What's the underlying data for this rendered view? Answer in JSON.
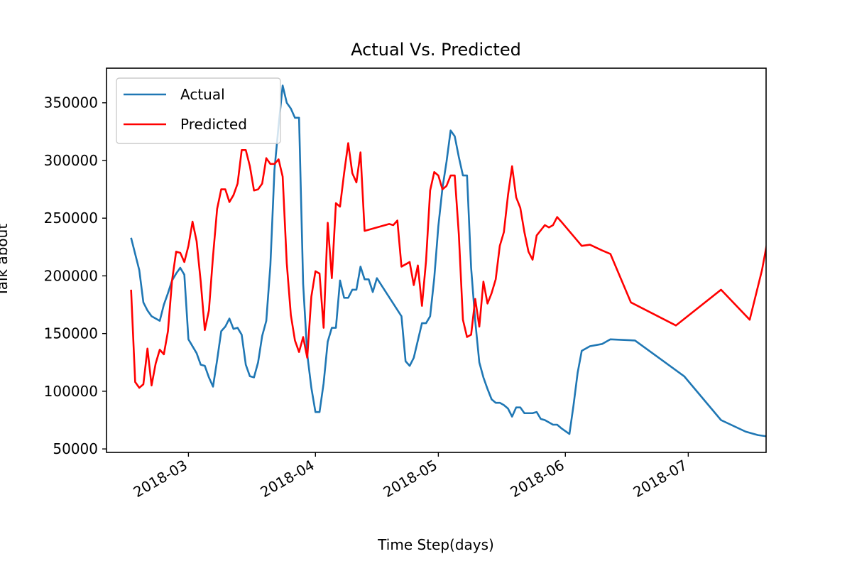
{
  "chart_data": {
    "type": "line",
    "title": "Actual Vs. Predicted",
    "xlabel": "Time Step(days)",
    "ylabel": "Talk about",
    "xlim": [
      "2018-02-09",
      "2018-07-20"
    ],
    "ylim": [
      47000,
      380000
    ],
    "x_ticks": [
      "2018-03-01",
      "2018-04-01",
      "2018-05-01",
      "2018-06-01",
      "2018-07-01"
    ],
    "x_tick_labels": [
      "2018-03",
      "2018-04",
      "2018-05",
      "2018-06",
      "2018-07"
    ],
    "y_ticks": [
      50000,
      100000,
      150000,
      200000,
      250000,
      300000,
      350000
    ],
    "y_tick_labels": [
      "50000",
      "100000",
      "150000",
      "200000",
      "250000",
      "300000",
      "350000"
    ],
    "grid": false,
    "legend": "upper-left",
    "series": [
      {
        "name": "Actual",
        "color": "#1f77b4",
        "points": [
          [
            "2018-02-15",
            233000
          ],
          [
            "2018-02-17",
            205000
          ],
          [
            "2018-02-18",
            177000
          ],
          [
            "2018-02-19",
            170000
          ],
          [
            "2018-02-20",
            165000
          ],
          [
            "2018-02-22",
            161000
          ],
          [
            "2018-02-23",
            175000
          ],
          [
            "2018-02-24",
            185000
          ],
          [
            "2018-02-25",
            196000
          ],
          [
            "2018-02-26",
            202000
          ],
          [
            "2018-02-27",
            207000
          ],
          [
            "2018-02-28",
            201000
          ],
          [
            "2018-03-01",
            145000
          ],
          [
            "2018-03-03",
            133000
          ],
          [
            "2018-03-04",
            123000
          ],
          [
            "2018-03-05",
            122000
          ],
          [
            "2018-03-06",
            112000
          ],
          [
            "2018-03-07",
            104000
          ],
          [
            "2018-03-08",
            127000
          ],
          [
            "2018-03-09",
            152000
          ],
          [
            "2018-03-10",
            156000
          ],
          [
            "2018-03-11",
            163000
          ],
          [
            "2018-03-12",
            154000
          ],
          [
            "2018-03-13",
            155000
          ],
          [
            "2018-03-14",
            149000
          ],
          [
            "2018-03-15",
            123000
          ],
          [
            "2018-03-16",
            113000
          ],
          [
            "2018-03-17",
            112000
          ],
          [
            "2018-03-18",
            125000
          ],
          [
            "2018-03-19",
            148000
          ],
          [
            "2018-03-20",
            161000
          ],
          [
            "2018-03-21",
            209000
          ],
          [
            "2018-03-22",
            292000
          ],
          [
            "2018-03-23",
            330000
          ],
          [
            "2018-03-24",
            365000
          ],
          [
            "2018-03-25",
            350000
          ],
          [
            "2018-03-26",
            345000
          ],
          [
            "2018-03-27",
            337000
          ],
          [
            "2018-03-28",
            337000
          ],
          [
            "2018-03-29",
            193000
          ],
          [
            "2018-03-30",
            132000
          ],
          [
            "2018-03-31",
            103000
          ],
          [
            "2018-04-01",
            82000
          ],
          [
            "2018-04-02",
            82000
          ],
          [
            "2018-04-03",
            107000
          ],
          [
            "2018-04-04",
            143000
          ],
          [
            "2018-04-05",
            155000
          ],
          [
            "2018-04-06",
            155000
          ],
          [
            "2018-04-07",
            196000
          ],
          [
            "2018-04-08",
            181000
          ],
          [
            "2018-04-09",
            181000
          ],
          [
            "2018-04-10",
            188000
          ],
          [
            "2018-04-11",
            188000
          ],
          [
            "2018-04-12",
            208000
          ],
          [
            "2018-04-13",
            197000
          ],
          [
            "2018-04-14",
            197000
          ],
          [
            "2018-04-15",
            186000
          ],
          [
            "2018-04-16",
            198000
          ],
          [
            "2018-04-22",
            165000
          ],
          [
            "2018-04-23",
            126000
          ],
          [
            "2018-04-24",
            122000
          ],
          [
            "2018-04-25",
            129000
          ],
          [
            "2018-04-26",
            144000
          ],
          [
            "2018-04-27",
            159000
          ],
          [
            "2018-04-28",
            159000
          ],
          [
            "2018-04-29",
            165000
          ],
          [
            "2018-04-30",
            198000
          ],
          [
            "2018-05-01",
            243000
          ],
          [
            "2018-05-02",
            276000
          ],
          [
            "2018-05-03",
            299000
          ],
          [
            "2018-05-04",
            326000
          ],
          [
            "2018-05-05",
            321000
          ],
          [
            "2018-05-06",
            303000
          ],
          [
            "2018-05-07",
            287000
          ],
          [
            "2018-05-08",
            287000
          ],
          [
            "2018-05-09",
            207000
          ],
          [
            "2018-05-10",
            161000
          ],
          [
            "2018-05-11",
            125000
          ],
          [
            "2018-05-12",
            112000
          ],
          [
            "2018-05-13",
            102000
          ],
          [
            "2018-05-14",
            93000
          ],
          [
            "2018-05-15",
            90000
          ],
          [
            "2018-05-16",
            90000
          ],
          [
            "2018-05-17",
            88000
          ],
          [
            "2018-05-18",
            85000
          ],
          [
            "2018-05-19",
            78000
          ],
          [
            "2018-05-20",
            86000
          ],
          [
            "2018-05-21",
            86000
          ],
          [
            "2018-05-22",
            81000
          ],
          [
            "2018-05-24",
            81000
          ],
          [
            "2018-05-25",
            82000
          ],
          [
            "2018-05-26",
            76000
          ],
          [
            "2018-05-27",
            75000
          ],
          [
            "2018-05-28",
            73000
          ],
          [
            "2018-05-29",
            71000
          ],
          [
            "2018-05-30",
            71000
          ],
          [
            "2018-05-31",
            68000
          ],
          [
            "2018-06-02",
            63000
          ],
          [
            "2018-06-03",
            88000
          ],
          [
            "2018-06-04",
            116000
          ],
          [
            "2018-06-05",
            135000
          ],
          [
            "2018-06-07",
            139000
          ],
          [
            "2018-06-10",
            141000
          ],
          [
            "2018-06-12",
            145000
          ],
          [
            "2018-06-18",
            144000
          ],
          [
            "2018-06-30",
            113000
          ],
          [
            "2018-07-09",
            75000
          ],
          [
            "2018-07-15",
            65000
          ],
          [
            "2018-07-18",
            62000
          ],
          [
            "2018-07-20",
            61000
          ]
        ]
      },
      {
        "name": "Predicted",
        "color": "#ff0000",
        "points": [
          [
            "2018-02-15",
            188000
          ],
          [
            "2018-02-16",
            108000
          ],
          [
            "2018-02-17",
            103000
          ],
          [
            "2018-02-18",
            106000
          ],
          [
            "2018-02-19",
            137000
          ],
          [
            "2018-02-20",
            105000
          ],
          [
            "2018-02-21",
            124000
          ],
          [
            "2018-02-22",
            136000
          ],
          [
            "2018-02-23",
            132000
          ],
          [
            "2018-02-24",
            152000
          ],
          [
            "2018-02-25",
            196000
          ],
          [
            "2018-02-26",
            221000
          ],
          [
            "2018-02-27",
            220000
          ],
          [
            "2018-02-28",
            212000
          ],
          [
            "2018-03-01",
            226000
          ],
          [
            "2018-03-02",
            247000
          ],
          [
            "2018-03-03",
            230000
          ],
          [
            "2018-03-04",
            195000
          ],
          [
            "2018-03-05",
            153000
          ],
          [
            "2018-03-06",
            170000
          ],
          [
            "2018-03-07",
            217000
          ],
          [
            "2018-03-08",
            258000
          ],
          [
            "2018-03-09",
            275000
          ],
          [
            "2018-03-10",
            275000
          ],
          [
            "2018-03-11",
            264000
          ],
          [
            "2018-03-12",
            270000
          ],
          [
            "2018-03-13",
            280000
          ],
          [
            "2018-03-14",
            309000
          ],
          [
            "2018-03-15",
            309000
          ],
          [
            "2018-03-16",
            295000
          ],
          [
            "2018-03-17",
            274000
          ],
          [
            "2018-03-18",
            275000
          ],
          [
            "2018-03-19",
            280000
          ],
          [
            "2018-03-20",
            302000
          ],
          [
            "2018-03-21",
            297000
          ],
          [
            "2018-03-22",
            297000
          ],
          [
            "2018-03-23",
            301000
          ],
          [
            "2018-03-24",
            286000
          ],
          [
            "2018-03-25",
            211000
          ],
          [
            "2018-03-26",
            166000
          ],
          [
            "2018-03-27",
            144000
          ],
          [
            "2018-03-28",
            134000
          ],
          [
            "2018-03-29",
            147000
          ],
          [
            "2018-03-30",
            129000
          ],
          [
            "2018-03-31",
            182000
          ],
          [
            "2018-04-01",
            204000
          ],
          [
            "2018-04-02",
            202000
          ],
          [
            "2018-04-03",
            155000
          ],
          [
            "2018-04-04",
            246000
          ],
          [
            "2018-04-05",
            198000
          ],
          [
            "2018-04-06",
            263000
          ],
          [
            "2018-04-07",
            260000
          ],
          [
            "2018-04-08",
            289000
          ],
          [
            "2018-04-09",
            315000
          ],
          [
            "2018-04-10",
            289000
          ],
          [
            "2018-04-11",
            281000
          ],
          [
            "2018-04-12",
            307000
          ],
          [
            "2018-04-13",
            239000
          ],
          [
            "2018-04-19",
            245000
          ],
          [
            "2018-04-20",
            244000
          ],
          [
            "2018-04-21",
            248000
          ],
          [
            "2018-04-22",
            208000
          ],
          [
            "2018-04-24",
            212000
          ],
          [
            "2018-04-25",
            192000
          ],
          [
            "2018-04-26",
            209000
          ],
          [
            "2018-04-27",
            174000
          ],
          [
            "2018-04-28",
            213000
          ],
          [
            "2018-04-29",
            274000
          ],
          [
            "2018-04-30",
            290000
          ],
          [
            "2018-05-01",
            287000
          ],
          [
            "2018-05-02",
            275000
          ],
          [
            "2018-05-03",
            278000
          ],
          [
            "2018-05-04",
            287000
          ],
          [
            "2018-05-05",
            287000
          ],
          [
            "2018-05-06",
            236000
          ],
          [
            "2018-05-07",
            162000
          ],
          [
            "2018-05-08",
            147000
          ],
          [
            "2018-05-09",
            149000
          ],
          [
            "2018-05-10",
            180000
          ],
          [
            "2018-05-11",
            156000
          ],
          [
            "2018-05-12",
            195000
          ],
          [
            "2018-05-13",
            176000
          ],
          [
            "2018-05-14",
            185000
          ],
          [
            "2018-05-15",
            197000
          ],
          [
            "2018-05-16",
            226000
          ],
          [
            "2018-05-17",
            238000
          ],
          [
            "2018-05-18",
            270000
          ],
          [
            "2018-05-19",
            295000
          ],
          [
            "2018-05-20",
            268000
          ],
          [
            "2018-05-21",
            259000
          ],
          [
            "2018-05-22",
            238000
          ],
          [
            "2018-05-23",
            221000
          ],
          [
            "2018-05-24",
            214000
          ],
          [
            "2018-05-25",
            235000
          ],
          [
            "2018-05-27",
            244000
          ],
          [
            "2018-05-28",
            242000
          ],
          [
            "2018-05-29",
            244000
          ],
          [
            "2018-05-30",
            251000
          ],
          [
            "2018-05-31",
            247000
          ],
          [
            "2018-06-05",
            226000
          ],
          [
            "2018-06-07",
            227000
          ],
          [
            "2018-06-10",
            222000
          ],
          [
            "2018-06-12",
            219000
          ],
          [
            "2018-06-17",
            177000
          ],
          [
            "2018-06-28",
            157000
          ],
          [
            "2018-07-09",
            188000
          ],
          [
            "2018-07-16",
            162000
          ],
          [
            "2018-07-19",
            205000
          ],
          [
            "2018-07-21",
            243000
          ]
        ]
      }
    ]
  }
}
